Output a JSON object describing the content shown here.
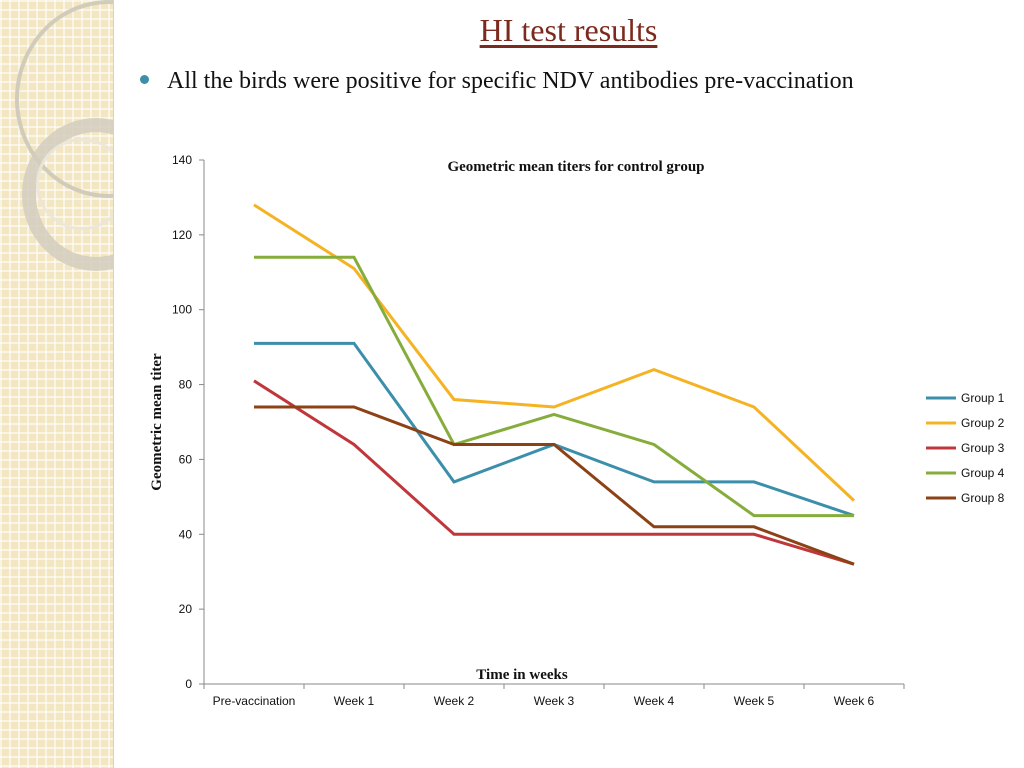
{
  "slide": {
    "title": "HI test results",
    "bullet": "All the birds were positive for specific NDV antibodies pre-vaccination"
  },
  "colors": {
    "title": "#7b2a1d",
    "bullet": "#3e8ea8",
    "sidebar": "#f3e6c3"
  },
  "chart_data": {
    "type": "line",
    "title": "Geometric mean titers for control group",
    "xlabel": "Time in weeks",
    "ylabel": "Geometric mean titer",
    "ylim": [
      0,
      140
    ],
    "yticks": [
      0,
      20,
      40,
      60,
      80,
      100,
      120,
      140
    ],
    "grid": false,
    "legend_position": "right",
    "categories": [
      "Pre-vaccination",
      "Week 1",
      "Week 2",
      "Week 3",
      "Week 4",
      "Week 5",
      "Week 6"
    ],
    "series": [
      {
        "name": "Group 1",
        "color": "#3c8fab",
        "values": [
          91,
          91,
          54,
          64,
          54,
          54,
          45
        ]
      },
      {
        "name": "Group 2",
        "color": "#f5b324",
        "values": [
          128,
          111,
          76,
          74,
          84,
          74,
          49
        ]
      },
      {
        "name": "Group 3",
        "color": "#c0373b",
        "values": [
          81,
          64,
          40,
          40,
          40,
          40,
          32
        ]
      },
      {
        "name": "Group 4",
        "color": "#86ad3c",
        "values": [
          114,
          114,
          64,
          72,
          64,
          45,
          45
        ]
      },
      {
        "name": "Group 8",
        "color": "#8d4216",
        "values": [
          74,
          74,
          64,
          64,
          42,
          42,
          32
        ]
      }
    ]
  }
}
